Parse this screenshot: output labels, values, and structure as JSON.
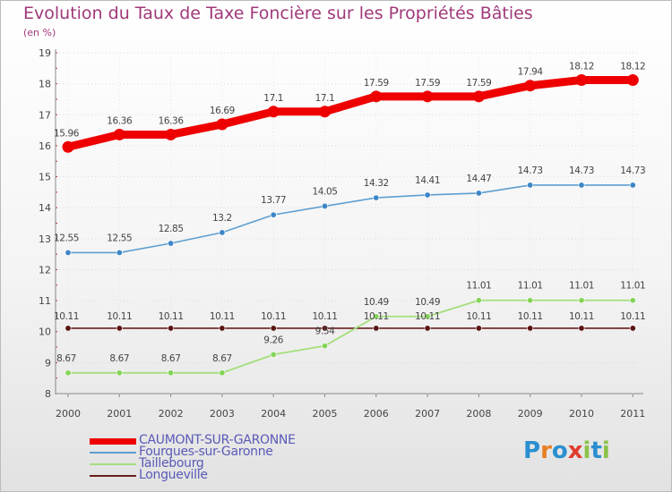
{
  "title": "Evolution du Taux de Taxe Foncière sur les Propriétés Bâties",
  "subtitle": "(en %)",
  "logo": {
    "letters": [
      "P",
      "r",
      "o",
      "x",
      "i",
      "t",
      "i"
    ],
    "colors": [
      "#2a8fd0",
      "#e87e24",
      "#2a8fd0",
      "#e03c2e",
      "#8bc34a",
      "#2a8fd0",
      "#8bc34a"
    ]
  },
  "chart_data": {
    "type": "line",
    "title": "Evolution du Taux de Taxe Foncière sur les Propriétés Bâties",
    "ylabel": "(en %)",
    "xlabel": "",
    "x": [
      "2000",
      "2001",
      "2002",
      "2003",
      "2004",
      "2005",
      "2006",
      "2007",
      "2008",
      "2009",
      "2010",
      "2011"
    ],
    "ylim": [
      8,
      19
    ],
    "yticks": [
      8,
      9,
      10,
      11,
      12,
      13,
      14,
      15,
      16,
      17,
      18,
      19
    ],
    "grid": true,
    "legend_position": "bottom-left",
    "series": [
      {
        "name": "CAUMONT-SUR-GARONNE",
        "color": "#ee0000",
        "width": 9,
        "values": [
          15.96,
          16.36,
          16.36,
          16.69,
          17.1,
          17.1,
          17.59,
          17.59,
          17.59,
          17.94,
          18.12,
          18.12
        ],
        "labels": [
          "15.96",
          "16.36",
          "16.36",
          "16.69",
          "17.1",
          "17.1",
          "17.59",
          "17.59",
          "17.59",
          "17.94",
          "18.12",
          "18.12"
        ]
      },
      {
        "name": "Fourques-sur-Garonne",
        "color": "#5e9fd0",
        "width": 1.6,
        "values": [
          12.55,
          12.55,
          12.85,
          13.2,
          13.77,
          14.05,
          14.32,
          14.41,
          14.47,
          14.73,
          14.73,
          14.73
        ],
        "labels": [
          "12.55",
          "12.55",
          "12.85",
          "13.2",
          "13.77",
          "14.05",
          "14.32",
          "14.41",
          "14.47",
          "14.73",
          "14.73",
          "14.73"
        ]
      },
      {
        "name": "Taillebourg",
        "color": "#a4df7c",
        "width": 1.8,
        "values": [
          8.67,
          8.67,
          8.67,
          8.67,
          9.26,
          9.54,
          10.49,
          10.49,
          11.01,
          11.01,
          11.01,
          11.01
        ],
        "labels": [
          "8.67",
          "8.67",
          "8.67",
          "8.67",
          "9.26",
          "9.54",
          "10.49",
          "10.49",
          "11.01",
          "11.01",
          "11.01",
          "11.01"
        ]
      },
      {
        "name": "Longueville",
        "color": "#6b1d1d",
        "width": 1.6,
        "values": [
          10.11,
          10.11,
          10.11,
          10.11,
          10.11,
          10.11,
          10.11,
          10.11,
          10.11,
          10.11,
          10.11,
          10.11
        ],
        "labels": [
          "10.11",
          "10.11",
          "10.11",
          "10.11",
          "10.11",
          "10.11",
          "10.11",
          "10.11",
          "10.11",
          "10.11",
          "10.11",
          "10.11"
        ]
      }
    ]
  }
}
